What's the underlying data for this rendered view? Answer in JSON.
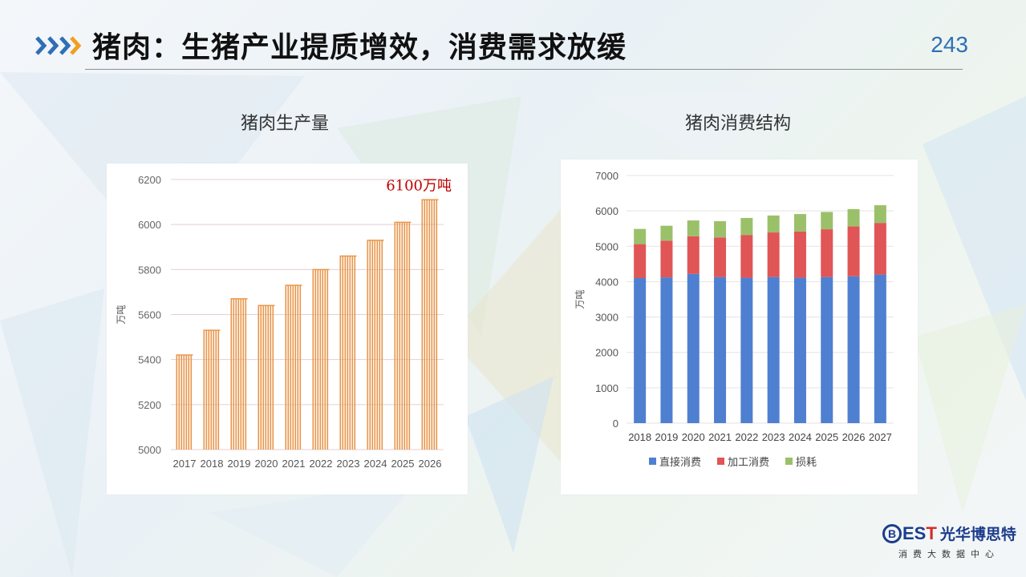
{
  "header": {
    "title": "猪肉：生猪产业提质增效，消费需求放缓",
    "page_number": "243"
  },
  "colors": {
    "chevron": "#2f6fb5",
    "chevron_accent": "#f0a020",
    "production_bar": "#e8964a",
    "annotation": "#c00000",
    "direct": "#4f7fd0",
    "processing": "#e05556",
    "loss": "#9bc06a"
  },
  "chart_data": [
    {
      "type": "bar",
      "title": "猪肉生产量",
      "ylabel": "万吨",
      "ylim": [
        5000,
        6200
      ],
      "yticks": [
        5000,
        5200,
        5400,
        5600,
        5800,
        6000,
        6200
      ],
      "categories": [
        "2017",
        "2018",
        "2019",
        "2020",
        "2021",
        "2022",
        "2023",
        "2024",
        "2025",
        "2026"
      ],
      "values": [
        5420,
        5530,
        5670,
        5640,
        5730,
        5800,
        5860,
        5930,
        6010,
        6110
      ],
      "annotation": "6100万吨",
      "grid": true
    },
    {
      "type": "bar",
      "stacked": true,
      "title": "猪肉消费结构",
      "ylabel": "万吨",
      "ylim": [
        0,
        7000
      ],
      "yticks": [
        0,
        1000,
        2000,
        3000,
        4000,
        5000,
        6000,
        7000
      ],
      "categories": [
        "2018",
        "2019",
        "2020",
        "2021",
        "2022",
        "2023",
        "2024",
        "2025",
        "2026",
        "2027"
      ],
      "series": [
        {
          "name": "直接消费",
          "values": [
            4100,
            4120,
            4220,
            4130,
            4110,
            4130,
            4110,
            4130,
            4150,
            4200
          ]
        },
        {
          "name": "加工消费",
          "values": [
            960,
            1040,
            1060,
            1120,
            1210,
            1260,
            1310,
            1350,
            1410,
            1460
          ]
        },
        {
          "name": "损耗",
          "values": [
            430,
            420,
            450,
            460,
            480,
            480,
            490,
            490,
            490,
            500
          ]
        }
      ],
      "legend_position": "bottom",
      "grid": true
    }
  ],
  "footer": {
    "logo_mark": "B",
    "logo_est": "ES",
    "logo_t": "T",
    "logo_cn": "光华博思特",
    "logo_sub": "消费大数据中心"
  }
}
